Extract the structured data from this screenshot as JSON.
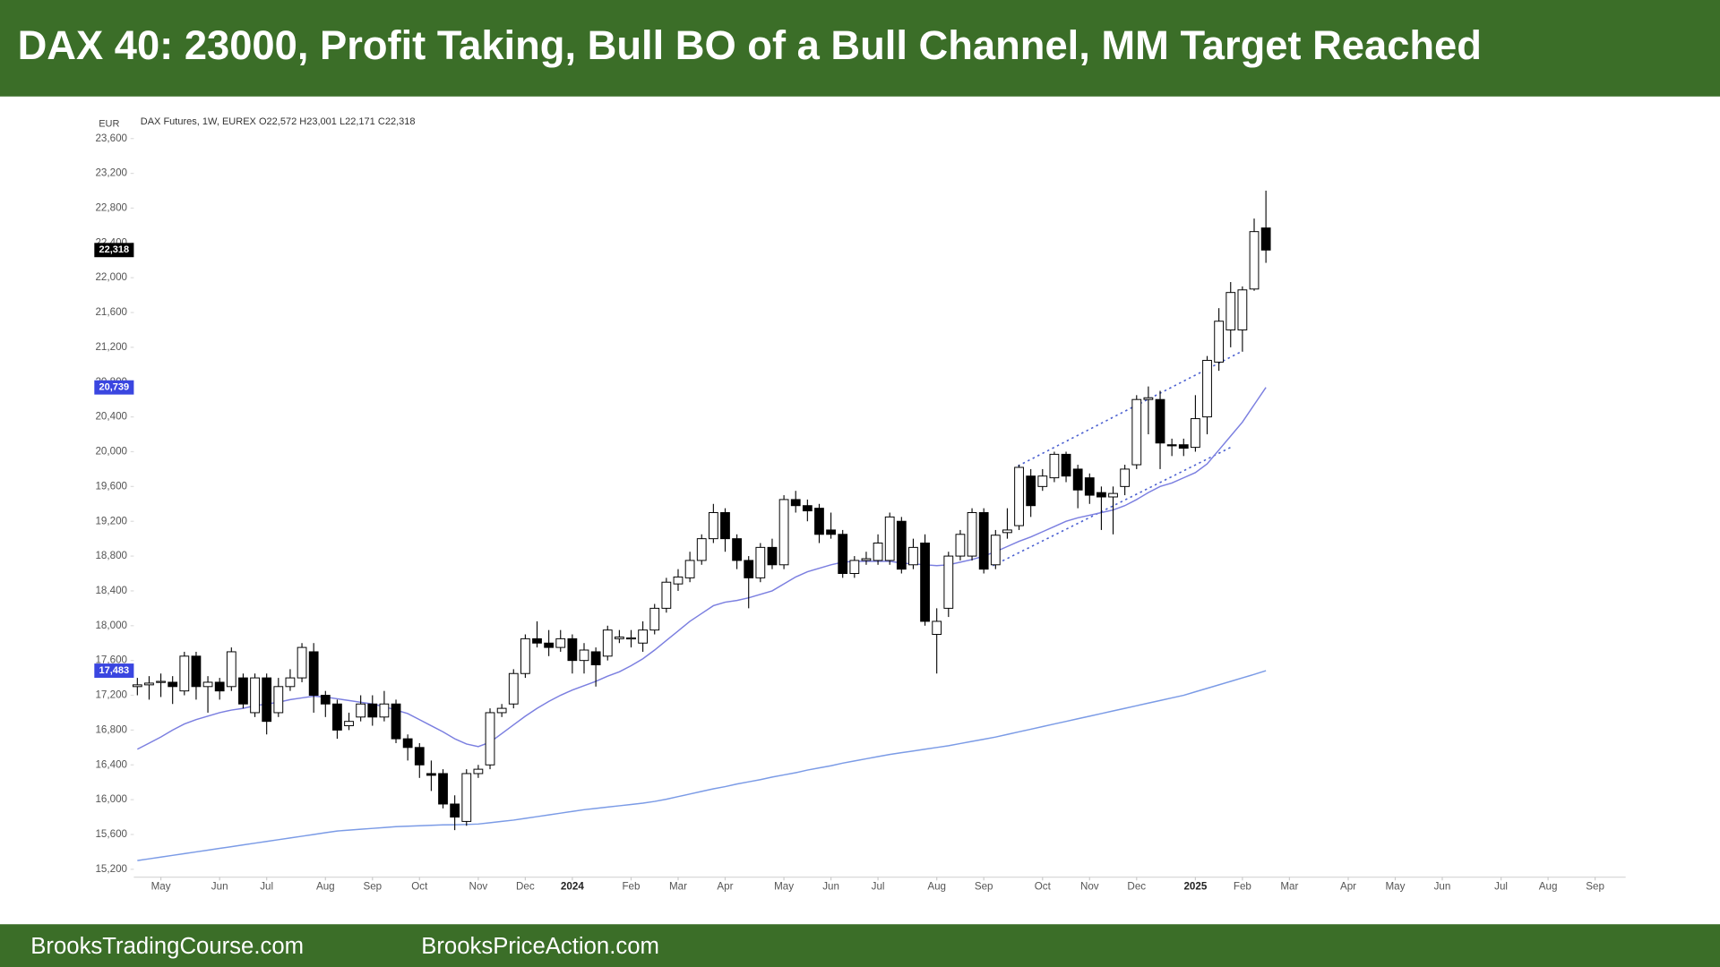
{
  "header": {
    "title": "DAX 40: 23000, Profit Taking, Bull BO of a Bull Channel, MM Target Reached"
  },
  "footer": {
    "left": "BrooksTradingCourse.com",
    "right": "BrooksPriceAction.com"
  },
  "chart_data": {
    "type": "candlestick",
    "subtitle": "DAX Futures, 1W, EUREX  O22,572 H23,001 L22,171 C22,318",
    "y_unit": "EUR",
    "open": [
      17300,
      17320,
      17350,
      17350,
      17250,
      17650,
      17300,
      17350,
      17300,
      17400,
      17000,
      17400,
      17000,
      17300,
      17400,
      17700,
      17200,
      17100,
      16850,
      16950,
      17100,
      16950,
      17100,
      16700,
      16600,
      16300,
      16300,
      15950,
      15750,
      16300,
      16400,
      17000,
      17100,
      17450,
      17850,
      17800,
      17750,
      17850,
      17600,
      17700,
      17650,
      17850,
      17850,
      17800,
      17950,
      18200,
      18480,
      18550,
      18750,
      19000,
      19300,
      19000,
      18750,
      18550,
      18900,
      18700,
      19450,
      19380,
      19350,
      19100,
      19050,
      18600,
      18750,
      18750,
      18750,
      19200,
      18700,
      18950,
      17900,
      18200,
      18800,
      18800,
      19300,
      18700,
      19070,
      19150,
      19720,
      19600,
      19700,
      19970,
      19800,
      19700,
      19530,
      19480,
      19600,
      19850,
      20600,
      20600,
      20080,
      20080,
      20050,
      20400,
      21030,
      21400,
      21400,
      21870,
      22572
    ],
    "high": [
      17400,
      17420,
      17450,
      17420,
      17700,
      17700,
      17420,
      17400,
      17750,
      17450,
      17450,
      17450,
      17400,
      17500,
      17800,
      17800,
      17250,
      17150,
      17000,
      17200,
      17200,
      17250,
      17150,
      16750,
      16650,
      16450,
      16350,
      16050,
      16350,
      16400,
      17050,
      17100,
      17500,
      17900,
      18050,
      17950,
      17950,
      17900,
      17800,
      17750,
      18000,
      17950,
      17950,
      18050,
      18250,
      18550,
      18650,
      18850,
      19050,
      19400,
      19350,
      19050,
      18800,
      18950,
      19000,
      19500,
      19550,
      19450,
      19400,
      19300,
      19100,
      18800,
      18850,
      19050,
      19300,
      19250,
      19000,
      19050,
      18200,
      18850,
      19100,
      19350,
      19350,
      19100,
      19350,
      19850,
      19800,
      19800,
      20000,
      20000,
      19850,
      19750,
      19600,
      19600,
      19850,
      20650,
      20750,
      20700,
      20150,
      20150,
      20650,
      21100,
      21650,
      21950,
      21900,
      22680,
      23001
    ],
    "low": [
      17200,
      17150,
      17180,
      17100,
      17200,
      17150,
      17000,
      17150,
      17250,
      17050,
      16950,
      16750,
      16950,
      17250,
      17350,
      17000,
      16950,
      16700,
      16800,
      16900,
      16850,
      16900,
      16650,
      16450,
      16250,
      16100,
      15900,
      15650,
      15700,
      16250,
      16350,
      16950,
      17050,
      17400,
      17750,
      17650,
      17700,
      17450,
      17450,
      17300,
      17600,
      17800,
      17750,
      17700,
      17900,
      18150,
      18400,
      18500,
      18700,
      18950,
      18850,
      18650,
      18200,
      18500,
      18650,
      18650,
      19300,
      19200,
      18950,
      19000,
      18550,
      18550,
      18700,
      18700,
      18700,
      18600,
      18650,
      18000,
      17450,
      18100,
      18750,
      18750,
      18600,
      18650,
      19000,
      19100,
      19250,
      19550,
      19650,
      19650,
      19350,
      19400,
      19100,
      19050,
      19500,
      19800,
      20200,
      19800,
      19950,
      19950,
      20000,
      20200,
      20930,
      21200,
      21150,
      21850,
      22171
    ],
    "close": [
      17320,
      17340,
      17360,
      17300,
      17650,
      17300,
      17350,
      17250,
      17700,
      17100,
      17400,
      16900,
      17300,
      17400,
      17750,
      17200,
      17100,
      16800,
      16900,
      17100,
      16950,
      17100,
      16700,
      16600,
      16400,
      16280,
      15950,
      15800,
      16300,
      16350,
      17000,
      17050,
      17450,
      17850,
      17800,
      17750,
      17850,
      17600,
      17720,
      17550,
      17950,
      17870,
      17860,
      17950,
      18200,
      18500,
      18560,
      18750,
      19000,
      19300,
      19000,
      18750,
      18550,
      18900,
      18700,
      19450,
      19380,
      19320,
      19050,
      19050,
      18600,
      18750,
      18770,
      18950,
      19250,
      18650,
      18900,
      18050,
      18050,
      18800,
      19050,
      19300,
      18650,
      19040,
      19100,
      19820,
      19380,
      19720,
      19970,
      19720,
      19560,
      19500,
      19480,
      19520,
      19800,
      20600,
      20620,
      20100,
      20070,
      20040,
      20380,
      21050,
      21500,
      21830,
      21860,
      22530,
      22318
    ],
    "lines": [
      {
        "color": "#7b7fe0",
        "values": [
          16580,
          16650,
          16720,
          16800,
          16870,
          16920,
          16960,
          17000,
          17030,
          17050,
          17080,
          17100,
          17120,
          17150,
          17170,
          17190,
          17180,
          17160,
          17140,
          17120,
          17100,
          17070,
          17030,
          16990,
          16920,
          16850,
          16780,
          16700,
          16640,
          16610,
          16660,
          16760,
          16860,
          16960,
          17050,
          17130,
          17200,
          17260,
          17310,
          17360,
          17420,
          17470,
          17540,
          17620,
          17720,
          17830,
          17940,
          18050,
          18140,
          18230,
          18270,
          18290,
          18320,
          18360,
          18400,
          18480,
          18560,
          18620,
          18660,
          18700,
          18730,
          18740,
          18740,
          18740,
          18740,
          18720,
          18710,
          18700,
          18690,
          18700,
          18730,
          18760,
          18800,
          18850,
          18910,
          18970,
          19020,
          19080,
          19140,
          19200,
          19240,
          19270,
          19300,
          19330,
          19380,
          19450,
          19530,
          19600,
          19640,
          19700,
          19760,
          19860,
          20020,
          20180,
          20340,
          20540,
          20739
        ]
      },
      {
        "color": "#7b9be6",
        "values": [
          15300,
          15320,
          15340,
          15360,
          15380,
          15400,
          15420,
          15440,
          15460,
          15480,
          15500,
          15520,
          15540,
          15560,
          15580,
          15600,
          15620,
          15640,
          15650,
          15660,
          15670,
          15680,
          15690,
          15695,
          15700,
          15705,
          15710,
          15712,
          15715,
          15720,
          15735,
          15750,
          15765,
          15785,
          15805,
          15825,
          15845,
          15865,
          15885,
          15900,
          15915,
          15930,
          15945,
          15960,
          15980,
          16005,
          16035,
          16065,
          16095,
          16125,
          16150,
          16180,
          16205,
          16230,
          16260,
          16285,
          16310,
          16340,
          16365,
          16390,
          16420,
          16445,
          16470,
          16495,
          16520,
          16540,
          16560,
          16580,
          16600,
          16620,
          16645,
          16670,
          16695,
          16720,
          16750,
          16780,
          16810,
          16840,
          16870,
          16900,
          16930,
          16960,
          16990,
          17020,
          17050,
          17080,
          17110,
          17140,
          17170,
          17200,
          17240,
          17280,
          17320,
          17360,
          17400,
          17440,
          17483
        ]
      }
    ],
    "markers": [
      {
        "value": 22318,
        "label": "22,318",
        "color": "#000000"
      },
      {
        "value": 20739,
        "label": "20,739",
        "color": "#3a46e0"
      },
      {
        "value": 17483,
        "label": "17,483",
        "color": "#3a46e0"
      }
    ],
    "xlim": [
      -0.3,
      126.6
    ],
    "xticks": [
      {
        "value": 2,
        "label": "May"
      },
      {
        "value": 7,
        "label": "Jun"
      },
      {
        "value": 11,
        "label": "Jul"
      },
      {
        "value": 16,
        "label": "Aug"
      },
      {
        "value": 20,
        "label": "Sep"
      },
      {
        "value": 24,
        "label": "Oct"
      },
      {
        "value": 29,
        "label": "Nov"
      },
      {
        "value": 33,
        "label": "Dec"
      },
      {
        "value": 37,
        "label": "2024"
      },
      {
        "value": 42,
        "label": "Feb"
      },
      {
        "value": 46,
        "label": "Mar"
      },
      {
        "value": 50,
        "label": "Apr"
      },
      {
        "value": 55,
        "label": "May"
      },
      {
        "value": 59,
        "label": "Jun"
      },
      {
        "value": 63,
        "label": "Jul"
      },
      {
        "value": 68,
        "label": "Aug"
      },
      {
        "value": 72,
        "label": "Sep"
      },
      {
        "value": 77,
        "label": "Oct"
      },
      {
        "value": 81,
        "label": "Nov"
      },
      {
        "value": 85,
        "label": "Dec"
      },
      {
        "value": 90,
        "label": "2025"
      },
      {
        "value": 94,
        "label": "Feb"
      },
      {
        "value": 98,
        "label": "Mar"
      },
      {
        "value": 103,
        "label": "Apr"
      },
      {
        "value": 107,
        "label": "May"
      },
      {
        "value": 111,
        "label": "Jun"
      },
      {
        "value": 116,
        "label": "Jul"
      },
      {
        "value": 120,
        "label": "Aug"
      },
      {
        "value": 124,
        "label": "Sep"
      }
    ],
    "ylim": [
      15110,
      23680
    ],
    "yticks": [
      {
        "value": 15200,
        "label": "15,200"
      },
      {
        "value": 15600,
        "label": "15,600"
      },
      {
        "value": 16000,
        "label": "16,000"
      },
      {
        "value": 16400,
        "label": "16,400"
      },
      {
        "value": 16800,
        "label": "16,800"
      },
      {
        "value": 17200,
        "label": "17,200"
      },
      {
        "value": 17600,
        "label": "17,600"
      },
      {
        "value": 18000,
        "label": "18,000"
      },
      {
        "value": 18400,
        "label": "18,400"
      },
      {
        "value": 18800,
        "label": "18,800"
      },
      {
        "value": 19200,
        "label": "19,200"
      },
      {
        "value": 19600,
        "label": "19,600"
      },
      {
        "value": 20000,
        "label": "20,000"
      },
      {
        "value": 20400,
        "label": "20,400"
      },
      {
        "value": 20800,
        "label": "20,800"
      },
      {
        "value": 21200,
        "label": "21,200"
      },
      {
        "value": 21600,
        "label": "21,600"
      },
      {
        "value": 22000,
        "label": "22,000"
      },
      {
        "value": 22400,
        "label": "22,400"
      },
      {
        "value": 22800,
        "label": "22,800"
      },
      {
        "value": 23200,
        "label": "23,200"
      },
      {
        "value": 23600,
        "label": "23,600"
      }
    ],
    "up_color": "#ffffff",
    "down_color": "#000000"
  }
}
